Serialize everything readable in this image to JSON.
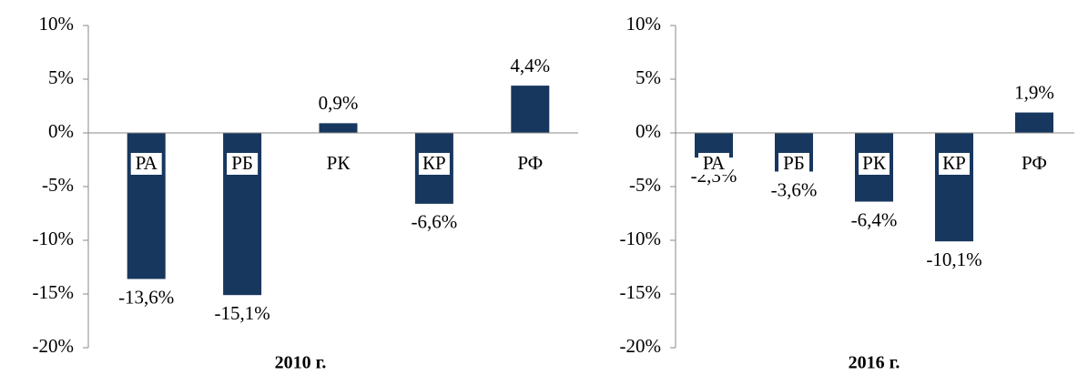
{
  "chart_data": [
    {
      "type": "bar",
      "title": "2010 г.",
      "categories": [
        "РА",
        "РБ",
        "РК",
        "КР",
        "РФ"
      ],
      "values": [
        -13.6,
        -15.1,
        0.9,
        -6.6,
        4.4
      ],
      "value_labels": [
        "-13,6%",
        "-15,1%",
        "0,9%",
        "-6,6%",
        "4,4%"
      ],
      "color": "#17375e",
      "ylim": [
        -20,
        10
      ],
      "yticks": [
        {
          "value": 10,
          "label": "10%"
        },
        {
          "value": 5,
          "label": "5%"
        },
        {
          "value": 0,
          "label": "0%"
        },
        {
          "value": -5,
          "label": "-5%"
        },
        {
          "value": -10,
          "label": "-10%"
        },
        {
          "value": -15,
          "label": "-15%"
        },
        {
          "value": -20,
          "label": "-20%"
        }
      ],
      "grid": false
    },
    {
      "type": "bar",
      "title": "2016 г.",
      "categories": [
        "РА",
        "РБ",
        "РК",
        "КР",
        "РФ"
      ],
      "values": [
        -2.3,
        -3.6,
        -6.4,
        -10.1,
        1.9
      ],
      "value_labels": [
        "-2,3%",
        "-3,6%",
        "-6,4%",
        "-10,1%",
        "1,9%"
      ],
      "color": "#17375e",
      "ylim": [
        -20,
        10
      ],
      "yticks": [
        {
          "value": 10,
          "label": "10%"
        },
        {
          "value": 5,
          "label": "5%"
        },
        {
          "value": 0,
          "label": "0%"
        },
        {
          "value": -5,
          "label": "-5%"
        },
        {
          "value": -10,
          "label": "-10%"
        },
        {
          "value": -15,
          "label": "-15%"
        },
        {
          "value": -20,
          "label": "-20%"
        }
      ],
      "grid": false
    }
  ]
}
